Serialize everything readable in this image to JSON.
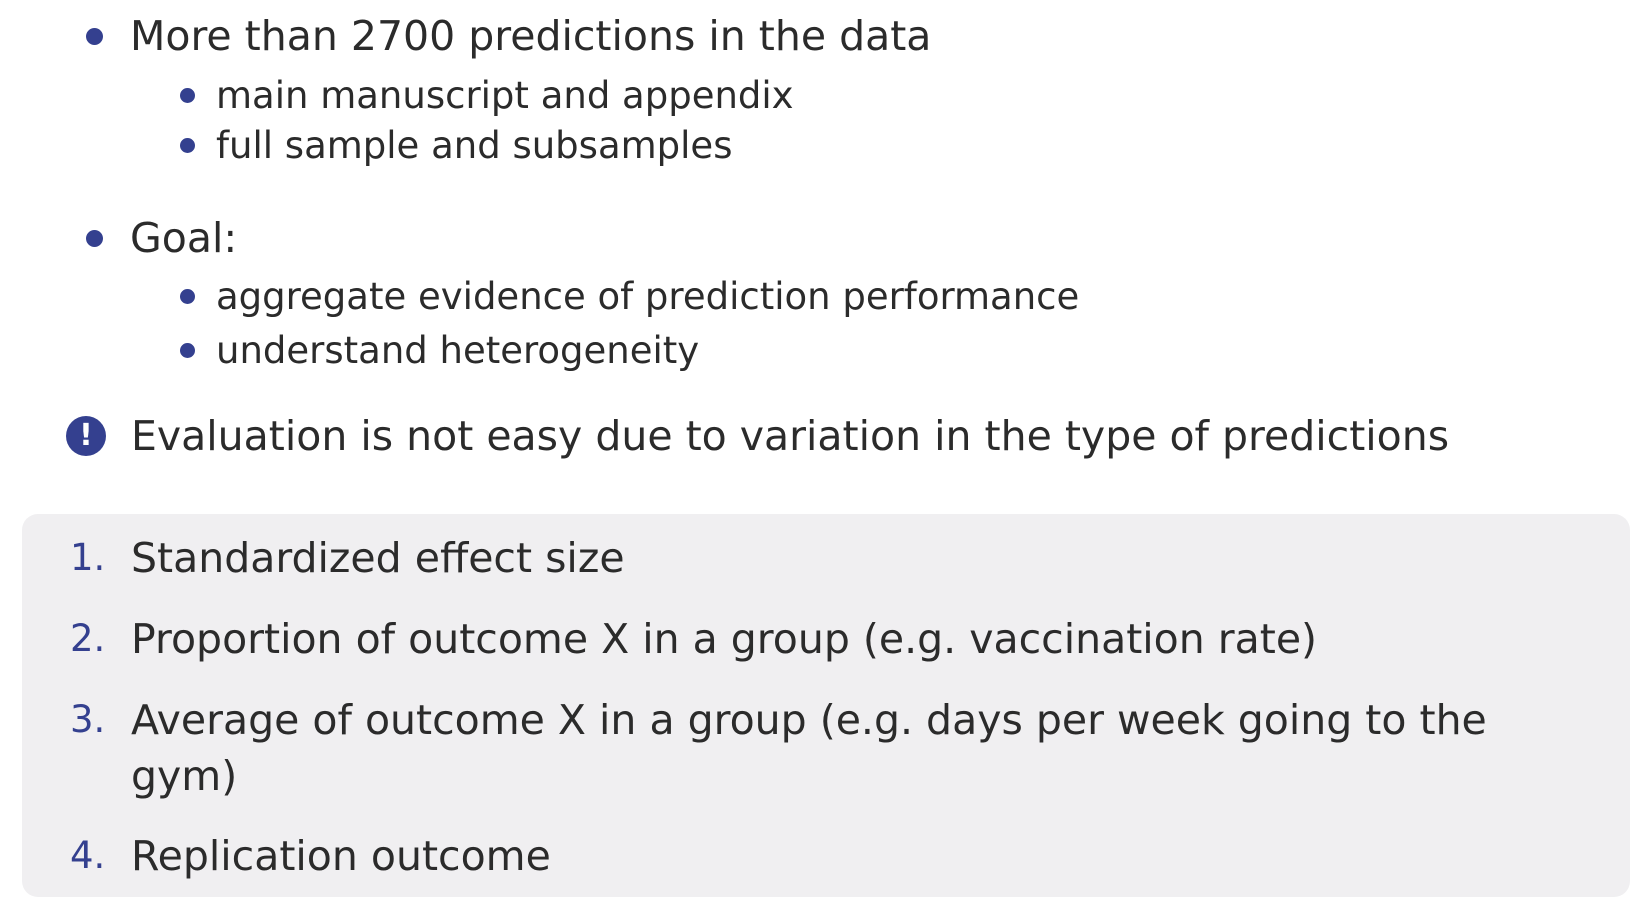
{
  "bullets": [
    {
      "text": "More than 2700 predictions in the data",
      "sub": [
        "main manuscript and appendix",
        "full sample and subsamples"
      ]
    },
    {
      "text": "Goal:",
      "sub": [
        "aggregate evidence of prediction performance",
        "understand heterogeneity"
      ]
    }
  ],
  "alert": {
    "icon": "exclamation-circle-icon",
    "text": "Evaluation is not easy due to variation in the type of predictions"
  },
  "types": [
    {
      "num": "1.",
      "text": "Standardized effect size"
    },
    {
      "num": "2.",
      "text": "Proportion of outcome X in a group (e.g. vaccination rate)"
    },
    {
      "num": "3.",
      "text": "Average of outcome X in a group (e.g. days per week going to the gym)"
    },
    {
      "num": "4.",
      "text": "Replication outcome"
    }
  ],
  "colors": {
    "accent": "#34408f",
    "panel": "#f0eff1",
    "text": "#2b2b2b"
  }
}
